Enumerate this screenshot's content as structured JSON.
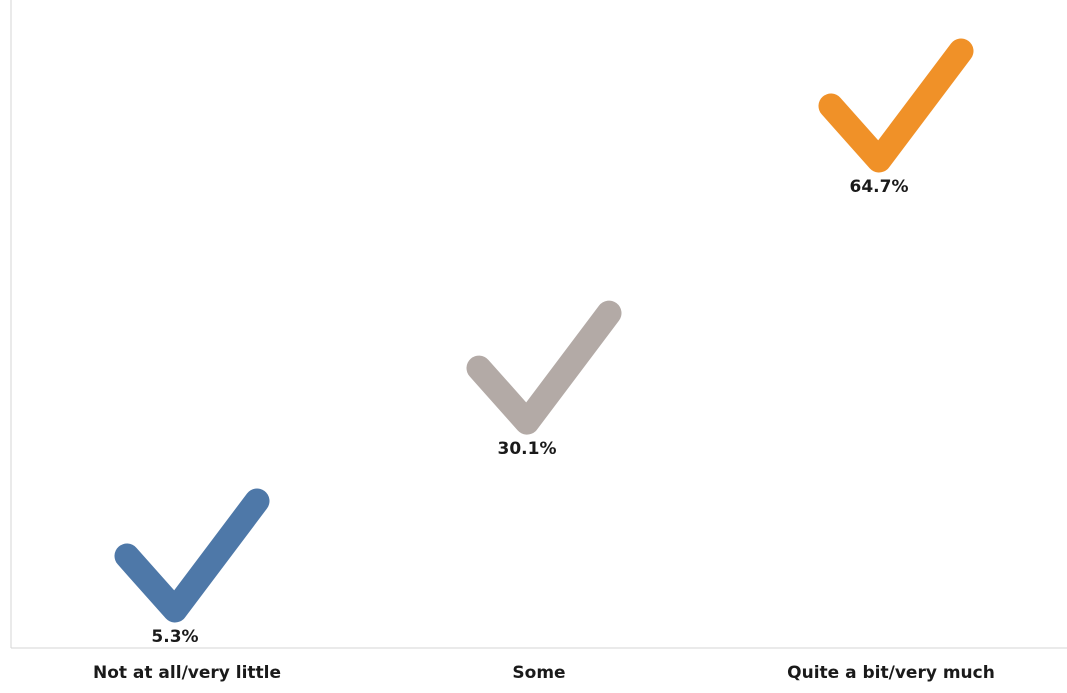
{
  "chart_data": {
    "type": "scatter",
    "categories": [
      "Not at all/very little",
      "Some",
      "Quite a bit/very much"
    ],
    "values": [
      5.3,
      30.1,
      64.7
    ],
    "value_labels": [
      "5.3%",
      "30.1%",
      "64.7%"
    ],
    "colors": [
      "#4e78a8",
      "#b3aaa6",
      "#f09128"
    ],
    "marker": "checkmark-icon",
    "ylim": [
      0,
      70
    ],
    "grid": false,
    "legend": "none"
  }
}
